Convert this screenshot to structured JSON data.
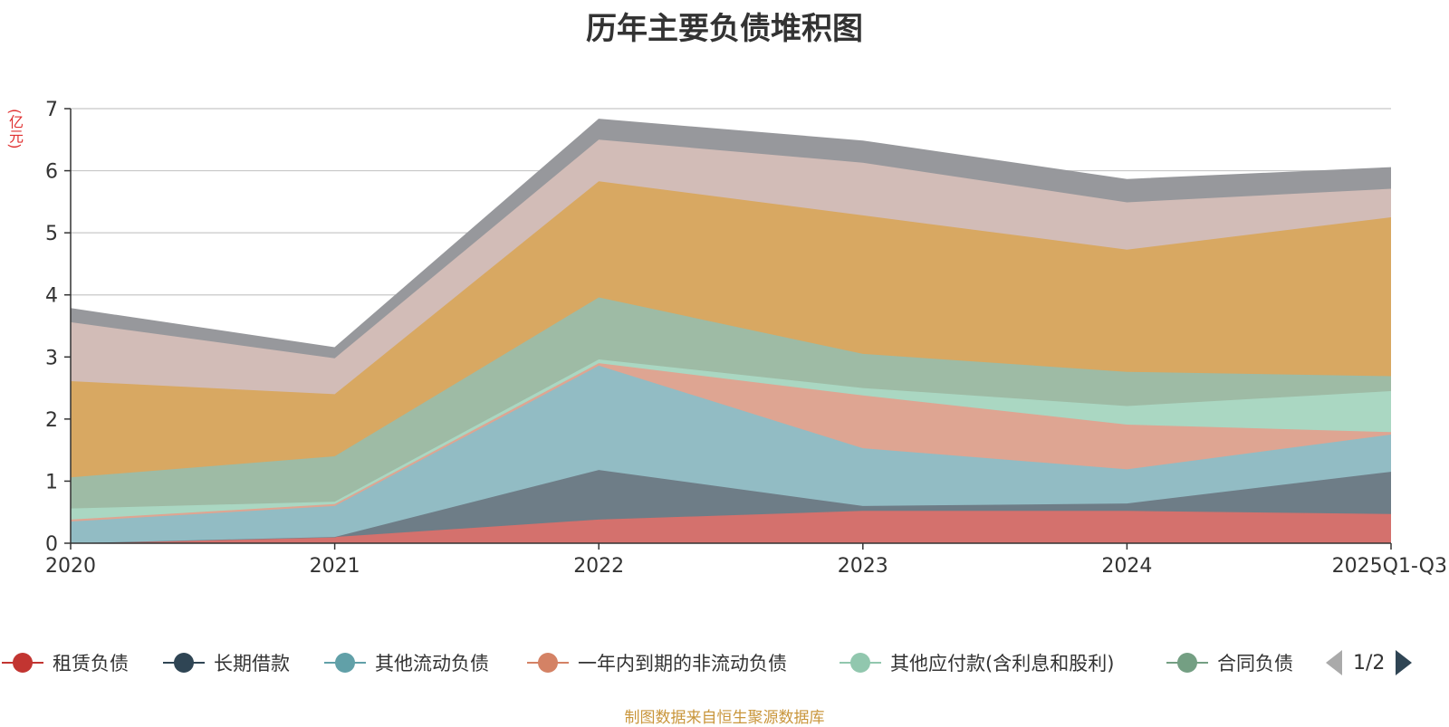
{
  "title": "历年主要负债堆积图",
  "unit": "(亿元)",
  "source": "制图数据来自恒生聚源数据库",
  "legend_page": "1/2",
  "colors": {
    "grid": "#c8c8c8",
    "axis": "#333333"
  },
  "chart_data": {
    "type": "area",
    "stacked": true,
    "title": "历年主要负债堆积图",
    "ylabel": "(亿元)",
    "categories": [
      "2020",
      "2021",
      "2022",
      "2023",
      "2024",
      "2025Q1-Q3"
    ],
    "ylim": [
      0,
      7
    ],
    "yticks": [
      0,
      1,
      2,
      3,
      4,
      5,
      6,
      7
    ],
    "grid": true,
    "series": [
      {
        "name": "租赁负债",
        "color": "#c23531",
        "fill": "#d4716d",
        "values": [
          0.0,
          0.1,
          0.38,
          0.52,
          0.52,
          0.47
        ],
        "in_legend": true
      },
      {
        "name": "长期借款",
        "color": "#2f4554",
        "fill": "#6e7d87",
        "values": [
          0.0,
          0.0,
          0.8,
          0.08,
          0.12,
          0.68
        ],
        "in_legend": true
      },
      {
        "name": "其他流动负债",
        "color": "#61a0a8",
        "fill": "#92bcc4",
        "values": [
          0.35,
          0.5,
          1.68,
          0.93,
          0.55,
          0.6
        ],
        "in_legend": true
      },
      {
        "name": "一年内到期的非流动负债",
        "color": "#d48265",
        "fill": "#dea592",
        "values": [
          0.03,
          0.03,
          0.04,
          0.85,
          0.72,
          0.04
        ],
        "in_legend": true
      },
      {
        "name": "其他应付款(含利息和股利)",
        "color": "#91c7ae",
        "fill": "#aad7c2",
        "values": [
          0.18,
          0.04,
          0.06,
          0.12,
          0.3,
          0.66
        ],
        "in_legend": true
      },
      {
        "name": "合同负债",
        "color": "#749f83",
        "fill": "#9ebba5",
        "values": [
          0.5,
          0.73,
          1.0,
          0.55,
          0.55,
          0.24
        ],
        "in_legend": true
      },
      {
        "name": "",
        "color": "#ca8622",
        "fill": "#d8a862",
        "values": [
          1.55,
          1.0,
          1.87,
          2.23,
          1.97,
          2.56
        ],
        "in_legend": false
      },
      {
        "name": "",
        "color": "#bda29a",
        "fill": "#d2bcb7",
        "values": [
          0.95,
          0.58,
          0.67,
          0.85,
          0.76,
          0.46
        ],
        "in_legend": false
      },
      {
        "name": "",
        "color": "#6e7074",
        "fill": "#97989c",
        "values": [
          0.22,
          0.17,
          0.33,
          0.35,
          0.37,
          0.34
        ],
        "in_legend": false
      }
    ]
  }
}
